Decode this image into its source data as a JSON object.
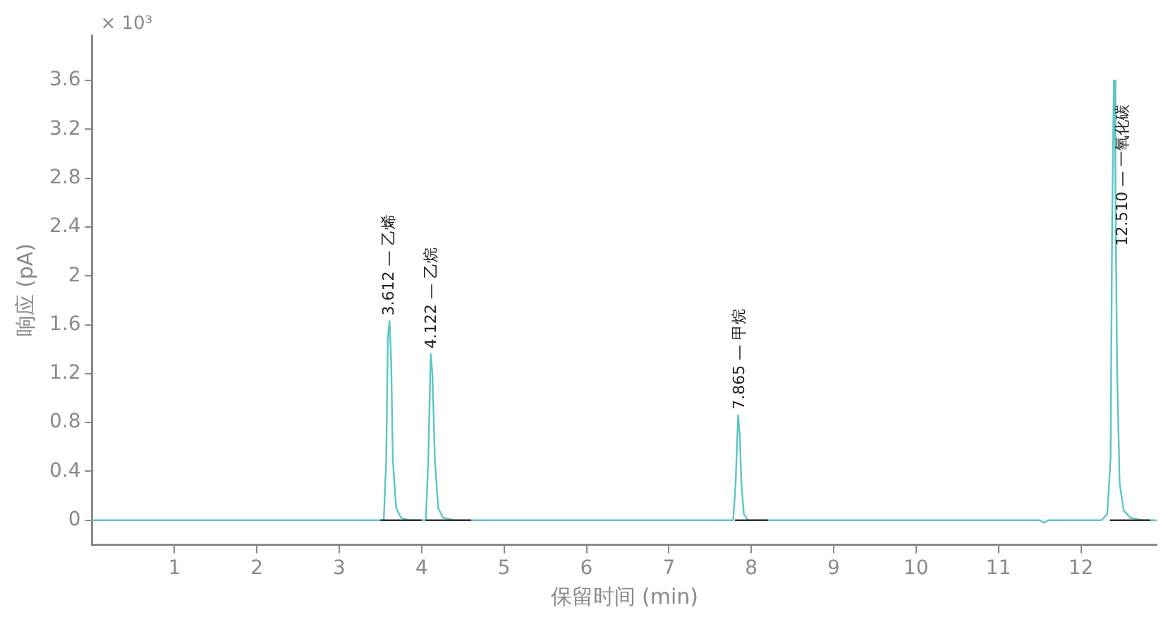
{
  "chart_data": {
    "type": "line",
    "xlabel": "保留时间 (min)",
    "ylabel": "响应 (pA)",
    "xlim": [
      0,
      12.92
    ],
    "ylim": [
      -0.2,
      3.97
    ],
    "xticks": [
      1,
      2,
      3,
      4,
      5,
      6,
      7,
      8,
      9,
      10,
      11,
      12
    ],
    "yticks": [
      0,
      0.4,
      0.8,
      1.2,
      1.6,
      2.0,
      2.4,
      2.8,
      3.2,
      3.6
    ],
    "grid": false,
    "legend": false,
    "marker": "none",
    "line_style": "solid",
    "series": [
      {
        "color": "#5cc6c2",
        "x": [
          0,
          3.4,
          3.54,
          3.57,
          3.59,
          3.61,
          3.63,
          3.65,
          3.69,
          3.75,
          3.85,
          4.0,
          4.05,
          4.08,
          4.11,
          4.13,
          4.16,
          4.2,
          4.26,
          4.4,
          7.7,
          7.78,
          7.81,
          7.84,
          7.86,
          7.88,
          7.91,
          7.96,
          8.1,
          11.5,
          11.55,
          11.6,
          12.25,
          12.32,
          12.36,
          12.38,
          12.4,
          12.41,
          12.42,
          12.44,
          12.47,
          12.52,
          12.6,
          12.75,
          12.92
        ],
        "values": [
          0,
          0,
          0,
          0.5,
          1.5,
          1.63,
          1.3,
          0.5,
          0.1,
          0.02,
          0,
          0,
          0,
          0.5,
          1.36,
          1.2,
          0.5,
          0.1,
          0.02,
          0,
          0,
          0,
          0.3,
          0.86,
          0.7,
          0.3,
          0.05,
          0,
          0,
          0,
          -0.02,
          0,
          0,
          0.05,
          0.5,
          2.5,
          3.6,
          3.6,
          2.6,
          1.2,
          0.3,
          0.08,
          0.02,
          0,
          0
        ]
      },
      {
        "color": "#333333",
        "x": [
          3.5,
          4.0
        ],
        "values": [
          0,
          0
        ]
      },
      {
        "color": "#333333",
        "x": [
          4.05,
          4.6
        ],
        "values": [
          0,
          0
        ]
      },
      {
        "color": "#333333",
        "x": [
          7.8,
          8.2
        ],
        "values": [
          0,
          0
        ]
      },
      {
        "color": "#333333",
        "x": [
          12.35,
          12.84
        ],
        "values": [
          0,
          0
        ]
      }
    ],
    "annotations": [
      "× 10³",
      {
        "text": "3.612 — 乙烯",
        "x": 3.612,
        "y": 1.63
      },
      {
        "text": "4.122 — 乙烷",
        "x": 4.122,
        "y": 1.36
      },
      {
        "text": "7.865 — 甲烷",
        "x": 7.865,
        "y": 0.86
      },
      {
        "text": "12.510 — 一氧化碳",
        "x": 12.51,
        "y": 2.2
      }
    ]
  }
}
